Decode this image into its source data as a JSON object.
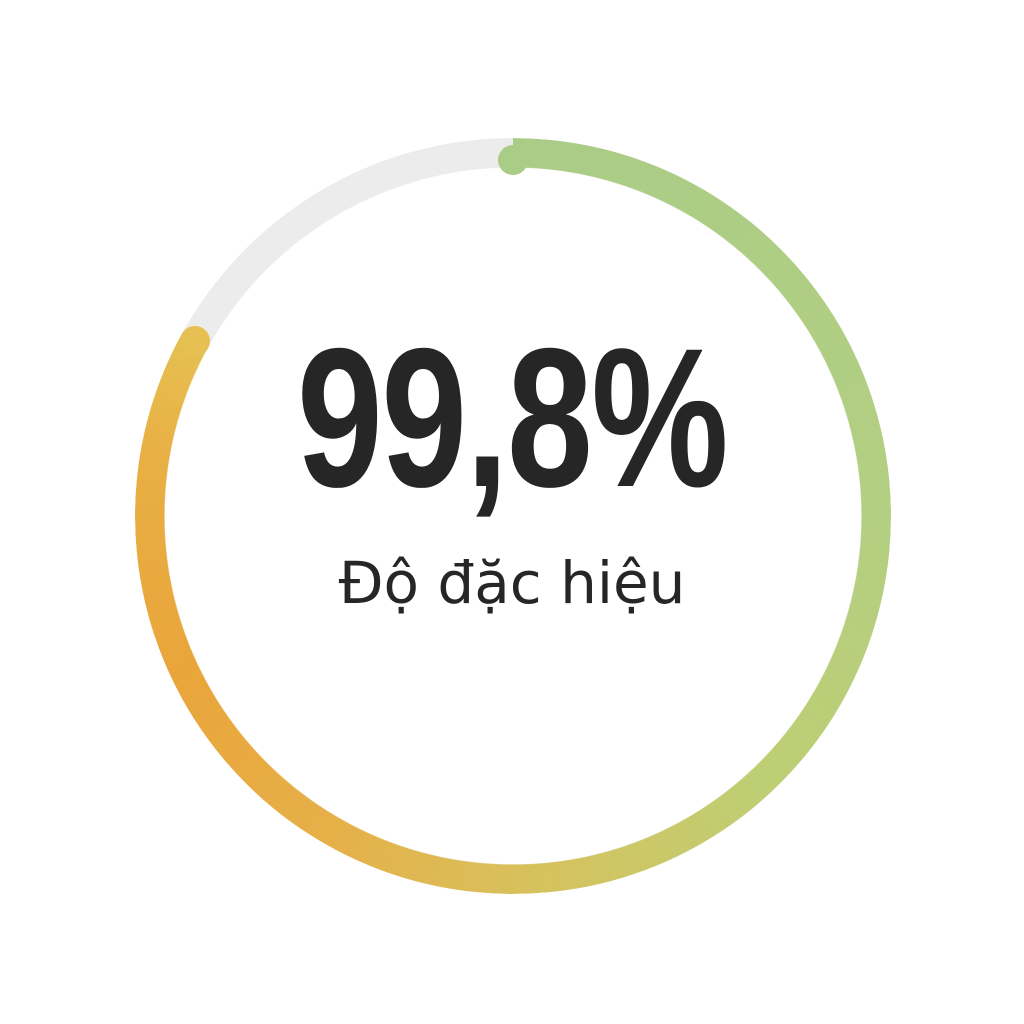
{
  "gauge": {
    "value_text": "99,8%",
    "label": "Độ đặc hiệu",
    "arc_fill_fraction": 0.83,
    "colors": {
      "track": "#ececec",
      "start": "#a9cc86",
      "middle": "#d6c25e",
      "low": "#e9a53a",
      "end": "#e6c052",
      "text": "#262626"
    }
  }
}
